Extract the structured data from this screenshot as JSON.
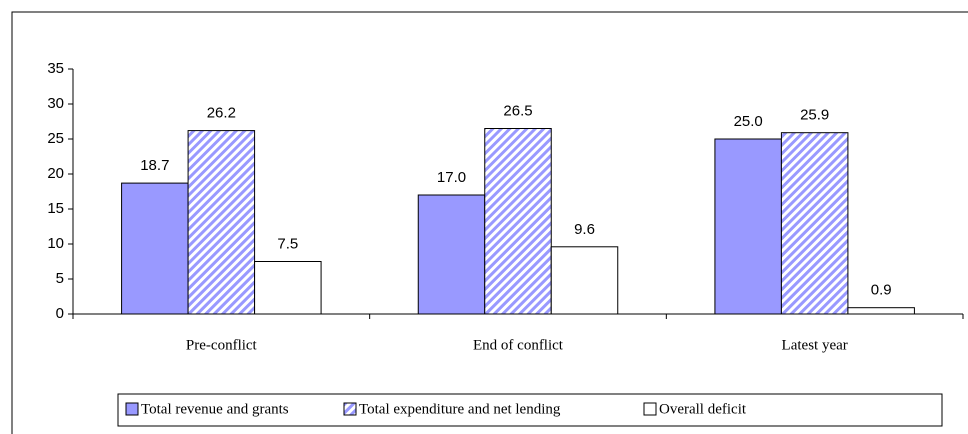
{
  "chart_data": {
    "type": "bar",
    "categories": [
      "Pre-conflict",
      "End of conflict",
      "Latest year"
    ],
    "series": [
      {
        "name": "Total revenue and grants",
        "color": "#9999ff",
        "pattern": "solid",
        "values": [
          18.7,
          17.0,
          25.0
        ],
        "value_labels": [
          "18.7",
          "17.0",
          "25.0"
        ]
      },
      {
        "name": "Total expenditure and net lending",
        "color": "#9999ff",
        "pattern": "hatch",
        "values": [
          26.2,
          26.5,
          25.9
        ],
        "value_labels": [
          "26.2",
          "26.5",
          "25.9"
        ]
      },
      {
        "name": "Overall deficit",
        "color": "#ffffff",
        "pattern": "solid",
        "values": [
          7.5,
          9.6,
          0.9
        ],
        "value_labels": [
          "7.5",
          "9.6",
          "0.9"
        ]
      }
    ],
    "ylim": [
      0,
      35
    ],
    "yticks": [
      0,
      5,
      10,
      15,
      20,
      25,
      30,
      35
    ],
    "grid": false,
    "legend": "bottom"
  }
}
